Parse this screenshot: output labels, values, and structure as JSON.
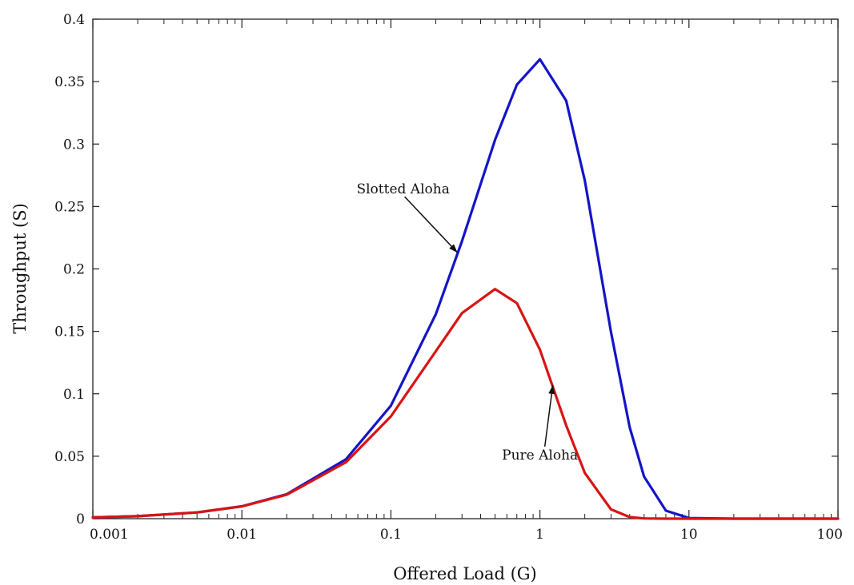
{
  "chart_data": {
    "type": "line",
    "xlabel": "Offered Load (G)",
    "ylabel": "Throughput (S)",
    "xscale": "log",
    "xlim": [
      0.001,
      100
    ],
    "ylim": [
      0,
      0.4
    ],
    "grid": false,
    "x_ticks": [
      "0.001",
      "0.01",
      "0.1",
      "1",
      "10",
      "100"
    ],
    "x_tick_values": [
      0.001,
      0.01,
      0.1,
      1,
      10,
      100
    ],
    "y_ticks": [
      "0",
      "0.05",
      "0.1",
      "0.15",
      "0.2",
      "0.25",
      "0.3",
      "0.35",
      "0.4"
    ],
    "y_tick_values": [
      0,
      0.05,
      0.1,
      0.15,
      0.2,
      0.25,
      0.3,
      0.35,
      0.4
    ],
    "x": [
      0.001,
      0.002,
      0.005,
      0.01,
      0.02,
      0.05,
      0.1,
      0.2,
      0.3,
      0.5,
      0.7,
      1,
      1.5,
      2,
      3,
      4,
      5,
      7,
      10,
      20,
      50,
      100
    ],
    "series": [
      {
        "name": "Slotted Aloha",
        "color": "#1414c8",
        "values": [
          0.001,
          0.002,
          0.005,
          0.0099,
          0.0196,
          0.0476,
          0.0905,
          0.1637,
          0.2222,
          0.3033,
          0.3476,
          0.3679,
          0.3347,
          0.2707,
          0.1494,
          0.0733,
          0.0337,
          0.0064,
          0.0005,
          0,
          0,
          0
        ]
      },
      {
        "name": "Pure Aloha",
        "color": "#d81414",
        "values": [
          0.001,
          0.002,
          0.005,
          0.0098,
          0.0192,
          0.0452,
          0.0819,
          0.1341,
          0.1646,
          0.1839,
          0.1726,
          0.1353,
          0.0747,
          0.0366,
          0.0074,
          0.0013,
          0.0002,
          0,
          0,
          0,
          0,
          0
        ]
      }
    ],
    "annotations": [
      {
        "text": "Slotted Aloha",
        "series": 0,
        "x": 0.28,
        "y": 0.213
      },
      {
        "text": "Pure Aloha",
        "series": 1,
        "x": 1.22,
        "y": 0.107
      }
    ]
  }
}
